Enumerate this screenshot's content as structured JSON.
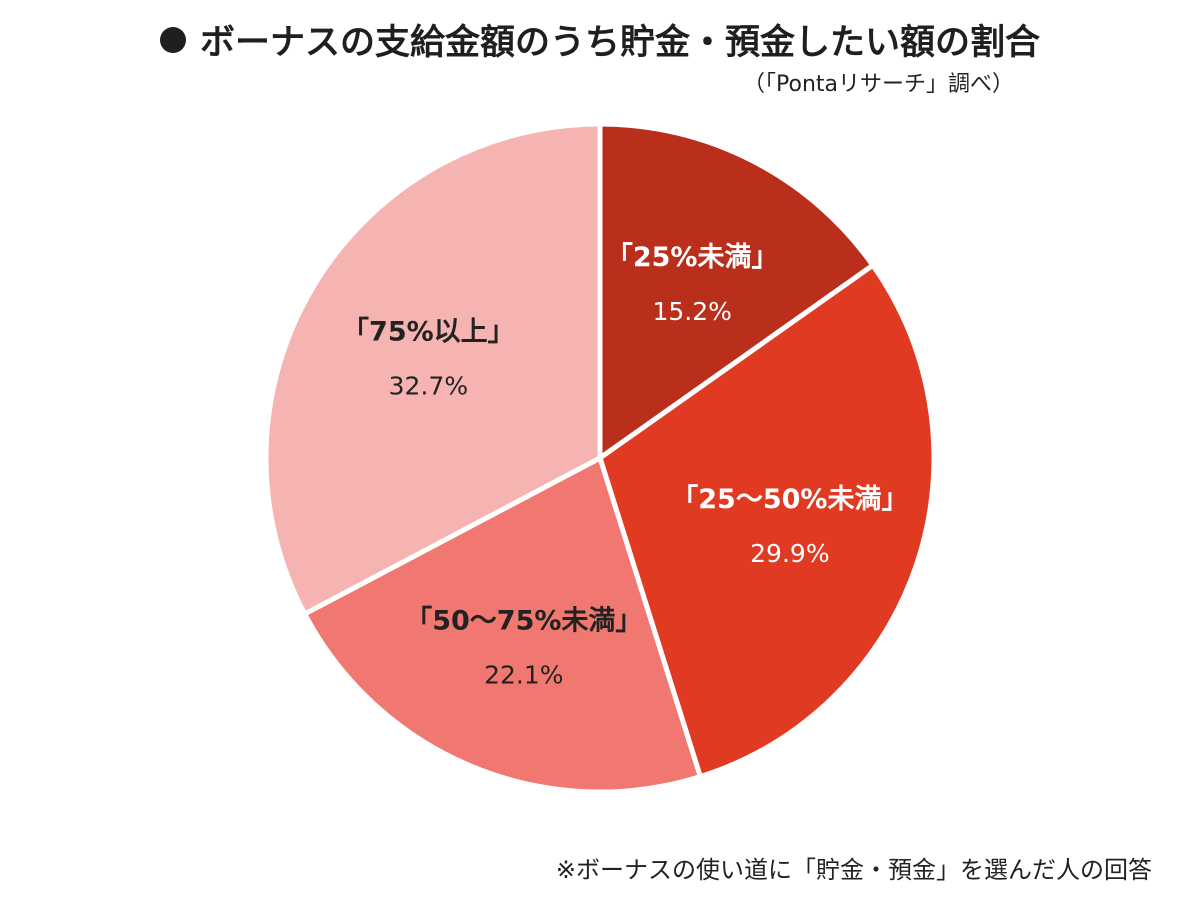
{
  "title": "ボーナスの支給金額のうち貯金・預金したい額の割合",
  "source": "（「Pontaリサーチ」調べ）",
  "note": "※ボーナスの使い道に「貯金・預金」を選んだ人の回答",
  "chart_data": {
    "type": "pie",
    "title": "ボーナスの支給金額のうち貯金・預金したい額の割合",
    "unit": "%",
    "start_angle_deg": 0,
    "direction": "clockwise",
    "slices": [
      {
        "label": "「25%未満」",
        "value": 15.2,
        "display": "15.2%",
        "color": "#b92f1c",
        "text_color": "#ffffff"
      },
      {
        "label": "「25～50%未満」",
        "value": 29.9,
        "display": "29.9%",
        "color": "#e03a22",
        "text_color": "#ffffff"
      },
      {
        "label": "「50～75%未満」",
        "value": 22.1,
        "display": "22.1%",
        "color": "#f07870",
        "text_color": "#222222"
      },
      {
        "label": "「75%以上」",
        "value": 32.7,
        "display": "32.7%",
        "color": "#f5b3b1",
        "text_color": "#222222"
      }
    ]
  }
}
